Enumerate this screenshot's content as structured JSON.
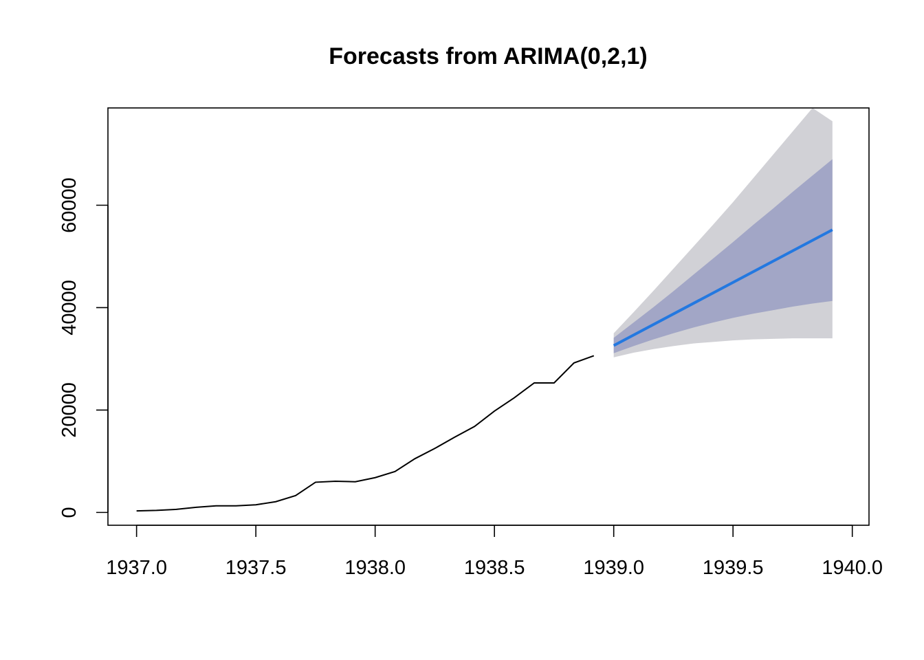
{
  "chart_data": {
    "type": "line",
    "title": "Forecasts from ARIMA(0,2,1)",
    "xlabel": "",
    "ylabel": "",
    "xlim": [
      1936.88,
      1940.07
    ],
    "ylim": [
      -2500,
      79000
    ],
    "x_ticks": [
      1937.0,
      1937.5,
      1938.0,
      1938.5,
      1939.0,
      1939.5,
      1940.0
    ],
    "x_tick_labels": [
      "1937.0",
      "1937.5",
      "1938.0",
      "1938.5",
      "1939.0",
      "1939.5",
      "1940.0"
    ],
    "y_ticks": [
      0,
      20000,
      40000,
      60000
    ],
    "y_tick_labels": [
      "0",
      "20000",
      "40000",
      "60000"
    ],
    "grid": false,
    "legend": "none",
    "series": [
      {
        "role": "observed",
        "color": "#000000",
        "x": [
          1937.0,
          1937.0833,
          1937.1667,
          1937.25,
          1937.3333,
          1937.4167,
          1937.5,
          1937.5833,
          1937.6667,
          1937.75,
          1937.8333,
          1937.9167,
          1938.0,
          1938.0833,
          1938.1667,
          1938.25,
          1938.3333,
          1938.4167,
          1938.5,
          1938.5833,
          1938.6667,
          1938.75,
          1938.8333,
          1938.9167
        ],
        "values": [
          300,
          400,
          600,
          1000,
          1300,
          1300,
          1500,
          2100,
          3300,
          5900,
          6100,
          6000,
          6800,
          8000,
          10500,
          12500,
          14700,
          16800,
          19800,
          22400,
          25300,
          25300,
          29200,
          30600
        ]
      },
      {
        "role": "point-forecast",
        "color": "#2378e0",
        "x": [
          1939.0,
          1939.9167
        ],
        "values": [
          32600,
          55200
        ]
      },
      {
        "role": "interval-95",
        "color": "#d1d1d6",
        "x": [
          1939.0,
          1939.0833,
          1939.1667,
          1939.25,
          1939.3333,
          1939.4167,
          1939.5,
          1939.5833,
          1939.6667,
          1939.75,
          1939.8333,
          1939.9167
        ],
        "upper": [
          35000,
          39100,
          43300,
          47600,
          51900,
          56200,
          60600,
          65200,
          69800,
          74400,
          79000,
          76400
        ],
        "lower": [
          30300,
          31200,
          31900,
          32500,
          33000,
          33300,
          33600,
          33800,
          33900,
          34000,
          34000,
          34000
        ]
      },
      {
        "role": "interval-80",
        "color": "#a2a6c6",
        "x": [
          1939.0,
          1939.0833,
          1939.1667,
          1939.25,
          1939.3333,
          1939.4167,
          1939.5,
          1939.5833,
          1939.6667,
          1939.75,
          1939.8333,
          1939.9167
        ],
        "upper": [
          34100,
          37100,
          40100,
          43200,
          46400,
          49600,
          52800,
          56100,
          59300,
          62600,
          65800,
          69000
        ],
        "lower": [
          31100,
          32500,
          33800,
          35000,
          36100,
          37100,
          38000,
          38800,
          39500,
          40200,
          40800,
          41300
        ]
      }
    ]
  }
}
